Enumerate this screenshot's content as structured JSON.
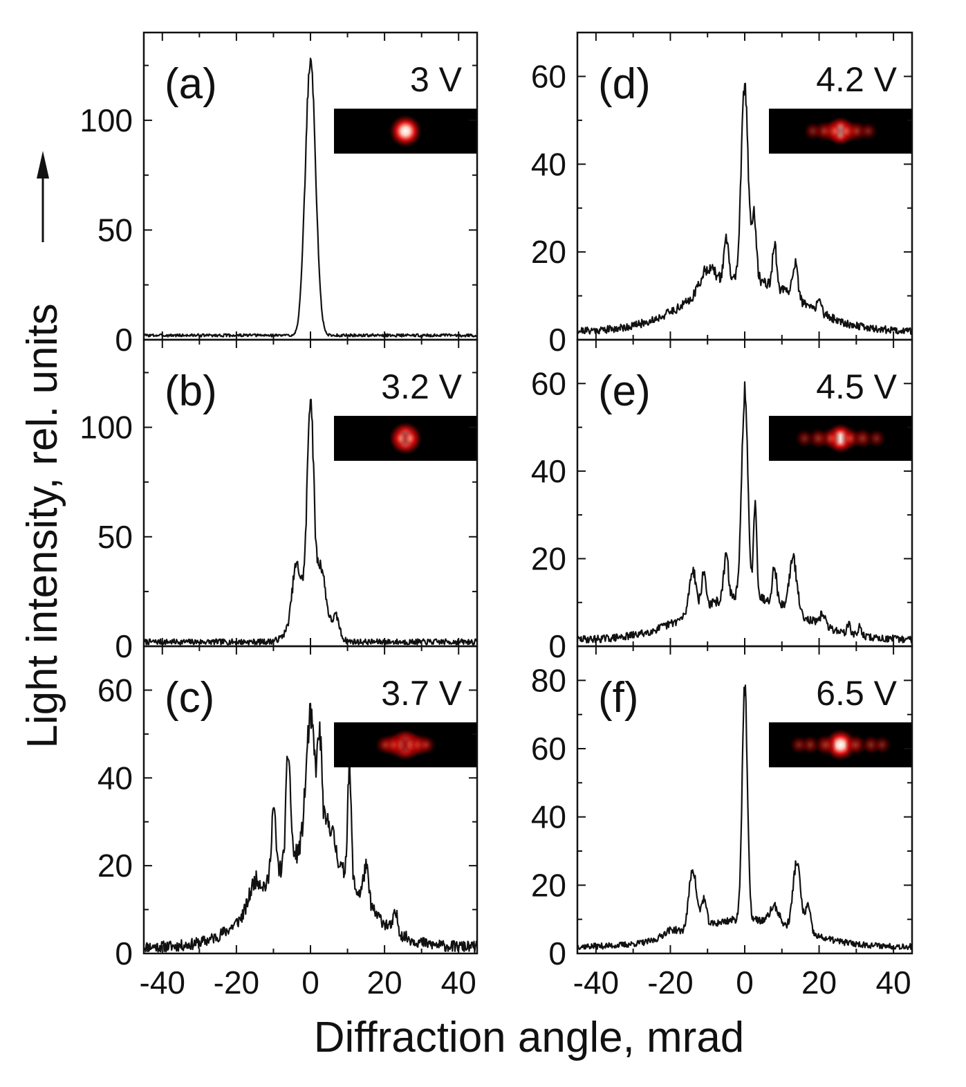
{
  "chart_data": [
    {
      "type": "line",
      "panel": "(a)",
      "voltage": "3 V",
      "xlim": [
        -45,
        45
      ],
      "ylim": [
        0,
        140
      ],
      "yticks": [
        0,
        50,
        100
      ],
      "xticks": [
        -40,
        -20,
        0,
        20,
        40
      ],
      "peaks": [
        [
          0,
          1.4,
          125
        ]
      ],
      "baseline": 2,
      "noise": 0.6,
      "seed": 3
    },
    {
      "type": "line",
      "panel": "(b)",
      "voltage": "3.2 V",
      "xlim": [
        -45,
        45
      ],
      "ylim": [
        0,
        140
      ],
      "yticks": [
        0,
        50,
        100
      ],
      "xticks": [
        -40,
        -20,
        0,
        20,
        40
      ],
      "peaks": [
        [
          0,
          0.8,
          85
        ],
        [
          0,
          3.5,
          28
        ],
        [
          -4,
          1.0,
          20
        ],
        [
          3,
          1.0,
          15
        ],
        [
          7,
          0.8,
          8
        ]
      ],
      "baseline": 2,
      "noise": 1.2,
      "seed": 7
    },
    {
      "type": "line",
      "panel": "(c)",
      "voltage": "3.7 V",
      "xlim": [
        -45,
        45
      ],
      "ylim": [
        0,
        70
      ],
      "yticks": [
        0,
        20,
        40,
        60
      ],
      "xticks": [
        -40,
        -20,
        0,
        20,
        40
      ],
      "peaks": [
        [
          0,
          12,
          22
        ],
        [
          0,
          1.2,
          30
        ],
        [
          -6,
          0.6,
          25
        ],
        [
          -10,
          0.6,
          16
        ],
        [
          2.5,
          0.6,
          22
        ],
        [
          10.5,
          0.5,
          26
        ],
        [
          15,
          0.7,
          8
        ],
        [
          5,
          1.5,
          8
        ],
        [
          -15,
          1.5,
          5
        ],
        [
          23,
          0.6,
          4
        ]
      ],
      "baseline": 1.5,
      "noise": 1.2,
      "seed": 11
    },
    {
      "type": "line",
      "panel": "(d)",
      "voltage": "4.2 V",
      "xlim": [
        -45,
        45
      ],
      "ylim": [
        0,
        70
      ],
      "yticks": [
        0,
        20,
        40,
        60
      ],
      "xticks": [
        -40,
        -20,
        0,
        20,
        40
      ],
      "peaks": [
        [
          0,
          14,
          12
        ],
        [
          0,
          0.9,
          44
        ],
        [
          -5,
          0.6,
          10
        ],
        [
          2.5,
          0.6,
          14
        ],
        [
          8,
          0.5,
          10
        ],
        [
          13.5,
          0.7,
          8
        ],
        [
          20,
          0.6,
          3
        ],
        [
          -10,
          2,
          5
        ]
      ],
      "baseline": 2,
      "noise": 0.8,
      "seed": 21
    },
    {
      "type": "line",
      "panel": "(e)",
      "voltage": "4.5 V",
      "xlim": [
        -45,
        45
      ],
      "ylim": [
        0,
        70
      ],
      "yticks": [
        0,
        20,
        40,
        60
      ],
      "xticks": [
        -40,
        -20,
        0,
        20,
        40
      ],
      "peaks": [
        [
          0,
          14,
          10
        ],
        [
          0,
          0.8,
          47
        ],
        [
          2.8,
          0.45,
          22
        ],
        [
          -14,
          0.9,
          10
        ],
        [
          -11,
          0.6,
          8
        ],
        [
          -5,
          0.6,
          10
        ],
        [
          8,
          0.6,
          8
        ],
        [
          13,
          1.0,
          12
        ],
        [
          21,
          0.6,
          3
        ],
        [
          28,
          0.5,
          2
        ],
        [
          31,
          0.5,
          2
        ]
      ],
      "baseline": 1.5,
      "noise": 0.8,
      "seed": 29
    },
    {
      "type": "line",
      "panel": "(f)",
      "voltage": "6.5 V",
      "xlim": [
        -45,
        45
      ],
      "ylim": [
        0,
        90
      ],
      "yticks": [
        0,
        20,
        40,
        60,
        80
      ],
      "xticks": [
        -40,
        -20,
        0,
        20,
        40
      ],
      "peaks": [
        [
          0,
          0.7,
          68
        ],
        [
          0,
          14,
          8
        ],
        [
          -14,
          1.0,
          18
        ],
        [
          -11,
          0.7,
          8
        ],
        [
          14,
          1.0,
          20
        ],
        [
          17,
          0.7,
          8
        ],
        [
          8,
          1.2,
          5
        ],
        [
          -20,
          2,
          2
        ]
      ],
      "baseline": 2,
      "noise": 0.8,
      "seed": 37
    }
  ],
  "axes": {
    "xlabel": "Diffraction angle, mrad",
    "ylabel": "Light intensity, rel. units"
  }
}
